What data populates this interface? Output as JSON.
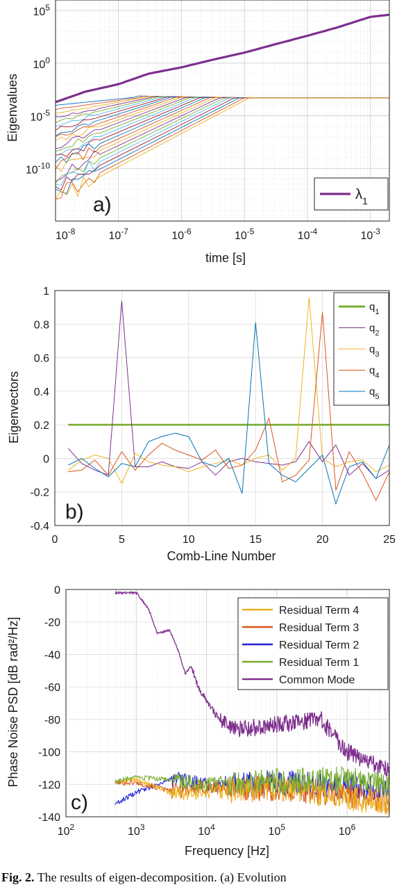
{
  "caption": {
    "label": "Fig. 2.",
    "text": "The results of eigen-decomposition. (a) Evolution"
  },
  "colors": {
    "purple": "#7e2f8e",
    "green": "#77ac30",
    "yellow": "#edb120",
    "orange": "#d95319",
    "blue": "#0072bd",
    "dark_blue": "#1f1fd6",
    "lightblue": "#4dbeee",
    "red": "#a2142f",
    "grid": "#d6d6d6"
  },
  "chart_data": [
    {
      "type": "line",
      "panel_label": "a)",
      "xlabel": "time [s]",
      "ylabel": "Eigenvalues",
      "xscale": "log",
      "yscale": "log",
      "xlim": [
        1e-08,
        0.002
      ],
      "ylim": [
        1e-15,
        1000000.0
      ],
      "x_ticks": [
        {
          "label": "10",
          "exp": "-8",
          "value": 1e-08
        },
        {
          "label": "10",
          "exp": "-7",
          "value": 1e-07
        },
        {
          "label": "10",
          "exp": "-6",
          "value": 1e-06
        },
        {
          "label": "10",
          "exp": "-5",
          "value": 1e-05
        },
        {
          "label": "10",
          "exp": "-4",
          "value": 0.0001
        },
        {
          "label": "10",
          "exp": "-3",
          "value": 0.001
        }
      ],
      "y_ticks": [
        {
          "label": "10",
          "exp": "5",
          "value": 100000.0
        },
        {
          "label": "10",
          "exp": "0",
          "value": 1
        },
        {
          "label": "10",
          "exp": "-5",
          "value": 1e-05
        },
        {
          "label": "10",
          "exp": "-10",
          "value": 1e-10
        }
      ],
      "grid": true,
      "legend": "bottom-right",
      "series": [
        {
          "name": "λ1",
          "legend_main": "λ",
          "legend_sub": "1",
          "color": "#7e2f8e",
          "width": 3.2,
          "x": [
            1e-08,
            3e-08,
            1e-07,
            3e-07,
            1e-06,
            3e-06,
            1e-05,
            3e-05,
            0.0001,
            0.0003,
            0.001,
            0.002
          ],
          "y": [
            0.0002,
            0.002,
            0.01,
            0.1,
            0.4,
            2,
            10,
            60,
            400,
            2500,
            25000,
            40000
          ]
        }
      ],
      "unlabeled_series_count": 24,
      "unlabeled_series_start_range": [
        1e-13,
        0.0001
      ],
      "unlabeled_series_end_value": 0.0005
    },
    {
      "type": "line",
      "panel_label": "b)",
      "xlabel": "Comb-Line Number",
      "ylabel": "Eigenvectors",
      "xlim": [
        0,
        25
      ],
      "ylim": [
        -0.4,
        1
      ],
      "x_ticks": [
        0,
        5,
        10,
        15,
        20,
        25
      ],
      "y_ticks": [
        "1",
        "0.8",
        "0.6",
        "0.4",
        "0.2",
        "0",
        "-0.2",
        "-0.4"
      ],
      "grid": true,
      "legend": "top-right",
      "x": [
        1,
        2,
        3,
        4,
        5,
        6,
        7,
        8,
        9,
        10,
        11,
        12,
        13,
        14,
        15,
        16,
        17,
        18,
        19,
        20,
        21,
        22,
        23,
        24,
        25
      ],
      "series": [
        {
          "name": "q1",
          "legend_main": "q",
          "legend_sub": "1",
          "color": "#77ac30",
          "width": 2.6,
          "values": [
            0.2,
            0.2,
            0.2,
            0.2,
            0.2,
            0.2,
            0.2,
            0.2,
            0.2,
            0.2,
            0.2,
            0.2,
            0.2,
            0.2,
            0.2,
            0.2,
            0.2,
            0.2,
            0.2,
            0.2,
            0.2,
            0.2,
            0.2,
            0.2,
            0.2
          ]
        },
        {
          "name": "q2",
          "legend_main": "q",
          "legend_sub": "2",
          "color": "#7e2f8e",
          "width": 1,
          "values": [
            0.06,
            -0.03,
            -0.07,
            -0.1,
            0.94,
            -0.05,
            -0.05,
            -0.02,
            -0.05,
            -0.06,
            -0.02,
            -0.1,
            -0.02,
            0.0,
            -0.02,
            -0.03,
            -0.04,
            -0.02,
            0.1,
            -0.02,
            0.08,
            -0.1,
            -0.03,
            -0.12,
            -0.07
          ]
        },
        {
          "name": "q3",
          "legend_main": "q",
          "legend_sub": "3",
          "color": "#edb120",
          "width": 1,
          "values": [
            -0.07,
            -0.01,
            0.02,
            0.0,
            -0.15,
            0.03,
            -0.02,
            -0.04,
            -0.05,
            -0.08,
            -0.05,
            -0.03,
            -0.01,
            -0.04,
            0.0,
            0.02,
            -0.07,
            0.0,
            0.96,
            0.0,
            -0.05,
            -0.02,
            -0.01,
            -0.08,
            -0.04
          ]
        },
        {
          "name": "q4",
          "legend_main": "q",
          "legend_sub": "4",
          "color": "#d95319",
          "width": 1,
          "values": [
            -0.08,
            -0.07,
            -0.01,
            -0.1,
            0.04,
            -0.07,
            0.02,
            0.09,
            0.05,
            0.02,
            -0.01,
            0.05,
            -0.06,
            -0.04,
            0.05,
            0.24,
            -0.14,
            -0.1,
            -0.01,
            0.87,
            -0.19,
            0.04,
            -0.09,
            -0.25,
            -0.08
          ]
        },
        {
          "name": "q5",
          "legend_main": "q",
          "legend_sub": "5",
          "color": "#0072bd",
          "width": 1,
          "values": [
            -0.04,
            0.0,
            -0.06,
            -0.11,
            -0.03,
            -0.05,
            0.1,
            0.13,
            0.15,
            0.13,
            -0.02,
            -0.05,
            0.0,
            -0.21,
            0.81,
            -0.03,
            -0.1,
            -0.14,
            -0.06,
            0.02,
            -0.27,
            -0.05,
            -0.02,
            -0.12,
            0.08
          ]
        }
      ]
    },
    {
      "type": "line",
      "panel_label": "c)",
      "xlabel": "Frequency [Hz]",
      "ylabel": "Phase Noise PSD [dB rad²/Hz]",
      "xscale": "log",
      "xlim": [
        100,
        4000000
      ],
      "ylim": [
        -140,
        0
      ],
      "x_ticks": [
        {
          "label": "10",
          "exp": "2",
          "value": 100
        },
        {
          "label": "10",
          "exp": "3",
          "value": 1000
        },
        {
          "label": "10",
          "exp": "4",
          "value": 10000
        },
        {
          "label": "10",
          "exp": "5",
          "value": 100000
        },
        {
          "label": "10",
          "exp": "6",
          "value": 1000000
        }
      ],
      "y_ticks": [
        "0",
        "-20",
        "-40",
        "-60",
        "-80",
        "-100",
        "-120",
        "-140"
      ],
      "grid": true,
      "legend": "top-right",
      "series": [
        {
          "name": "Residual Term 4",
          "color": "#edb120",
          "width": 1.6,
          "x": [
            500,
            1000,
            3000,
            10000,
            100000,
            1000000,
            4000000
          ],
          "y": [
            -118,
            -117,
            -125,
            -125,
            -122,
            -128,
            -132
          ]
        },
        {
          "name": "Residual Term 3",
          "color": "#d95319",
          "width": 1.6,
          "x": [
            500,
            1000,
            3000,
            10000,
            100000,
            1000000,
            4000000
          ],
          "y": [
            -119,
            -119,
            -124,
            -122,
            -123,
            -126,
            -131
          ]
        },
        {
          "name": "Residual Term 2",
          "color": "#1f1fd6",
          "width": 1.6,
          "x": [
            500,
            1000,
            3000,
            10000,
            100000,
            1000000,
            4000000
          ],
          "y": [
            -132,
            -125,
            -117,
            -120,
            -119,
            -121,
            -124
          ]
        },
        {
          "name": "Residual Term 1",
          "color": "#77ac30",
          "width": 1.6,
          "x": [
            500,
            1000,
            3000,
            10000,
            100000,
            1000000,
            4000000
          ],
          "y": [
            -118,
            -116,
            -117,
            -120,
            -118,
            -117,
            -120
          ]
        },
        {
          "name": "Common Mode",
          "color": "#7e2f8e",
          "width": 1.6,
          "x": [
            500,
            1000,
            1500,
            2000,
            3000,
            4000,
            5000,
            6000,
            8000,
            10000,
            15000,
            20000,
            30000,
            50000,
            100000,
            200000,
            400000,
            600000,
            1000000,
            2000000,
            4000000
          ],
          "y": [
            -2,
            -2,
            -12,
            -27,
            -25,
            -38,
            -52,
            -47,
            -62,
            -68,
            -80,
            -83,
            -86,
            -85,
            -83,
            -82,
            -79,
            -88,
            -100,
            -106,
            -112
          ]
        }
      ]
    }
  ]
}
